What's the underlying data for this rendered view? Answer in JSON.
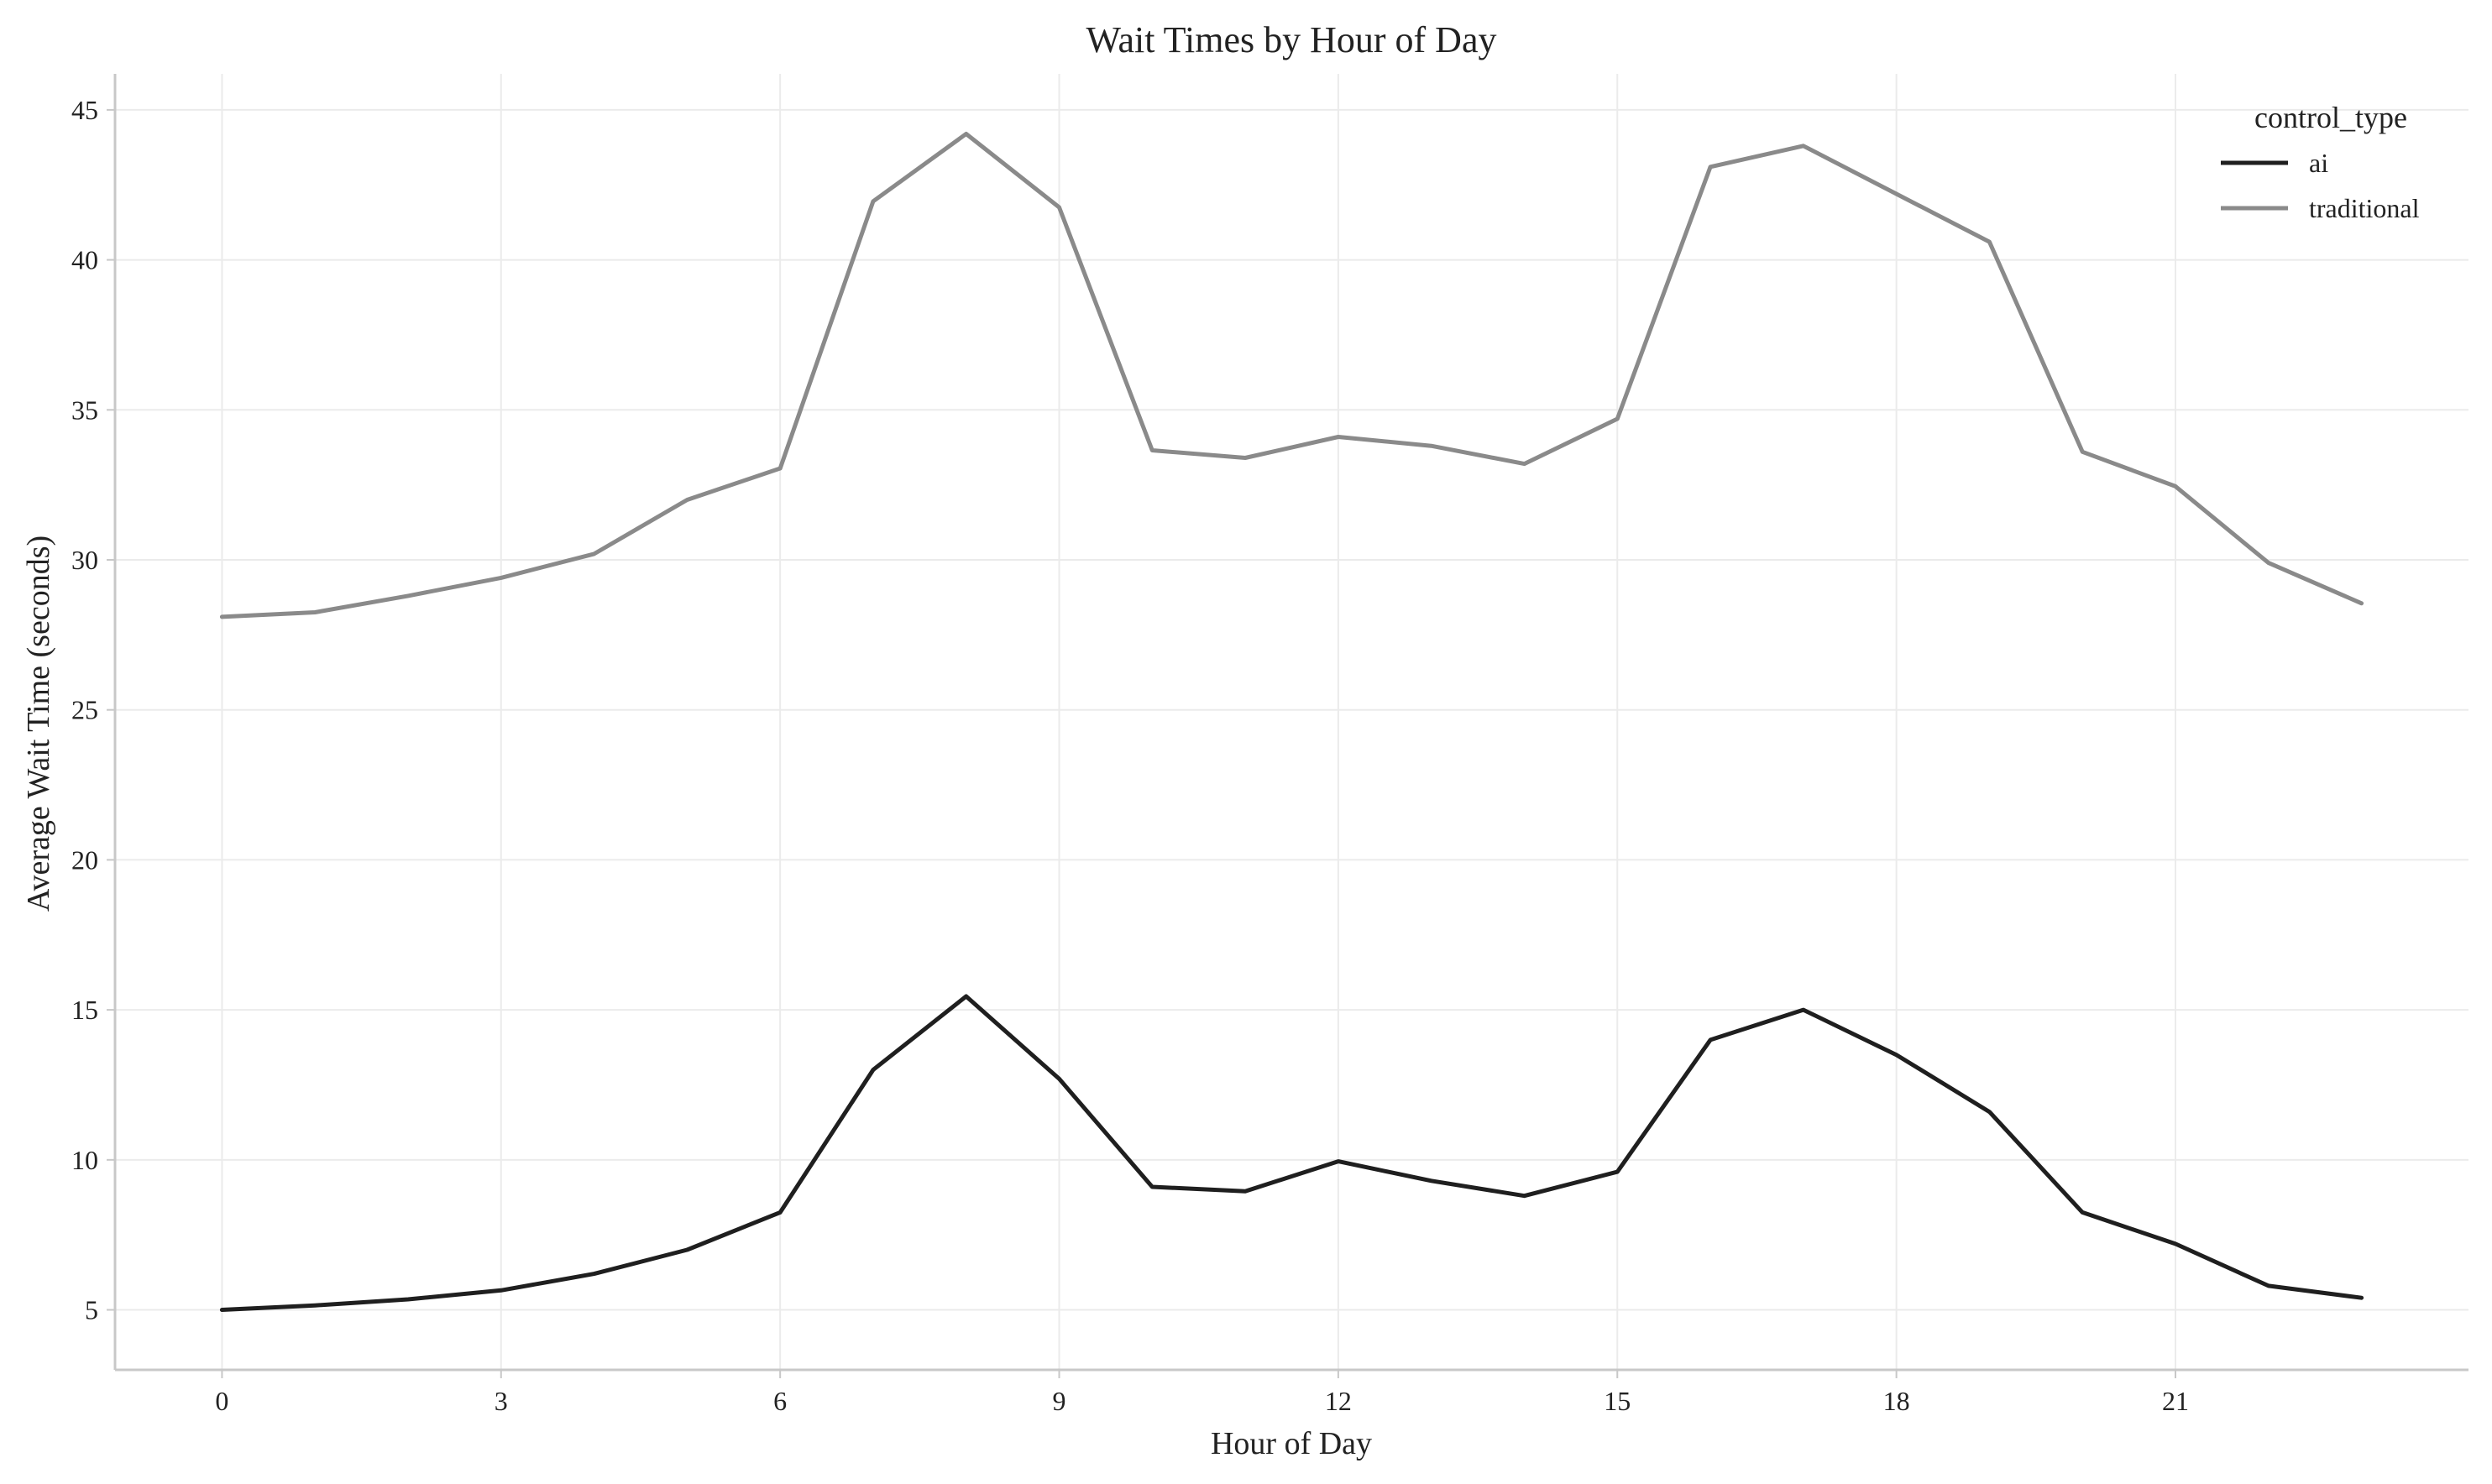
{
  "chart_data": {
    "type": "line",
    "title": "Wait Times by Hour of Day",
    "xlabel": "Hour of Day",
    "ylabel": "Average Wait Time (seconds)",
    "x": [
      0,
      1,
      2,
      3,
      4,
      5,
      6,
      7,
      8,
      9,
      10,
      11,
      12,
      13,
      14,
      15,
      16,
      17,
      18,
      19,
      20,
      21,
      22,
      23
    ],
    "xticks": [
      0,
      3,
      6,
      9,
      12,
      15,
      18,
      21
    ],
    "yticks": [
      5,
      10,
      15,
      20,
      25,
      30,
      35,
      40,
      45
    ],
    "xlim": [
      -1.15,
      24.15
    ],
    "ylim": [
      3.0,
      46.2
    ],
    "grid": true,
    "legend": {
      "title": "control_type",
      "position": "top-right"
    },
    "series": [
      {
        "name": "ai",
        "color": "#1f1f1f",
        "values": [
          5.0,
          5.15,
          5.35,
          5.65,
          6.2,
          7.0,
          8.25,
          13.0,
          15.45,
          12.7,
          9.1,
          8.95,
          9.95,
          9.3,
          8.8,
          9.6,
          14.0,
          15.0,
          13.5,
          11.6,
          8.25,
          7.2,
          5.8,
          5.4
        ]
      },
      {
        "name": "traditional",
        "color": "#8a8a8a",
        "values": [
          28.1,
          28.25,
          28.8,
          29.4,
          30.2,
          32.0,
          33.05,
          41.95,
          44.2,
          41.75,
          33.65,
          33.4,
          34.1,
          33.8,
          33.2,
          34.7,
          43.1,
          43.8,
          42.2,
          40.6,
          33.6,
          32.45,
          29.9,
          28.55
        ]
      }
    ]
  }
}
